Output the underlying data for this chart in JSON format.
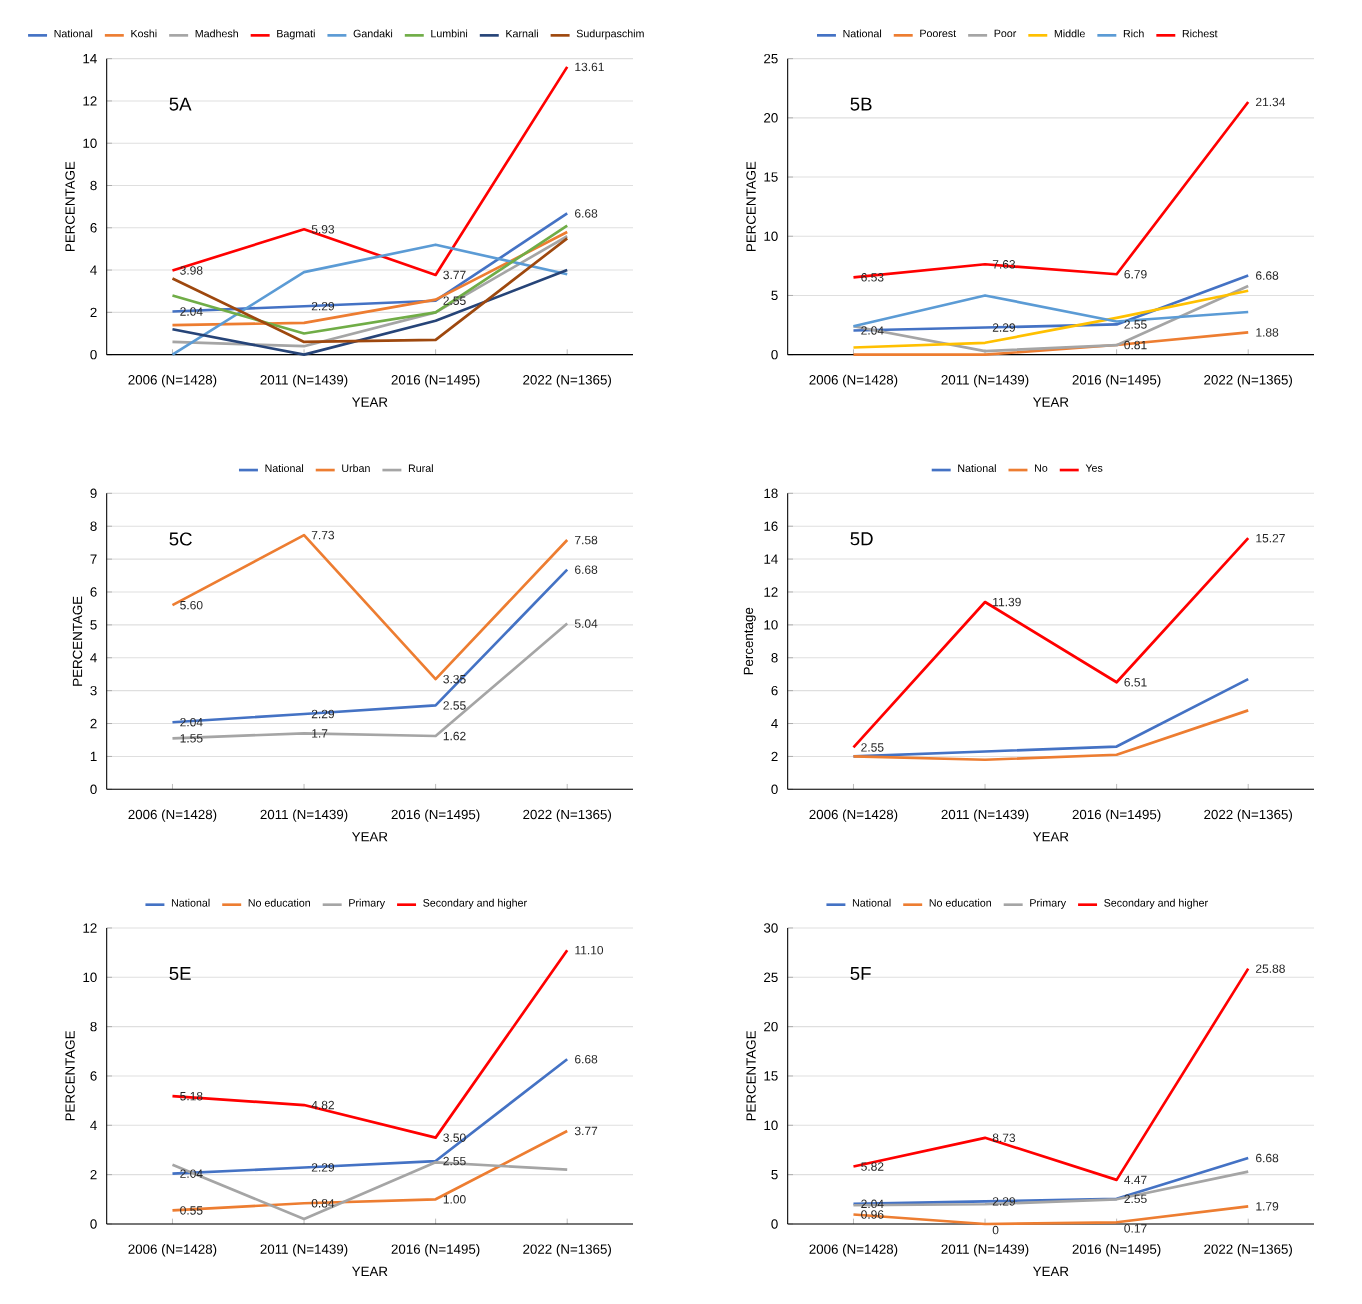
{
  "chart_data": [
    {
      "type": "line",
      "title": "5A",
      "xlabel": "YEAR",
      "ylabel": "PERCENTAGE",
      "categories": [
        "2006 (N=1428)",
        "2011 (N=1439)",
        "2016 (N=1495)",
        "2022 (N=1365)"
      ],
      "ylim": [
        0,
        14
      ],
      "yticks": [
        0,
        2,
        4,
        6,
        8,
        10,
        12,
        14
      ],
      "grid": "y",
      "legend": "top",
      "marker": "none",
      "line_style": "solid",
      "series": [
        {
          "name": "National",
          "color": "#4472c4",
          "values": [
            2.04,
            2.29,
            2.55,
            6.68
          ],
          "value_labels": [
            "2.04",
            "2.29",
            "2.55",
            "6.68"
          ]
        },
        {
          "name": "Koshi",
          "color": "#ed7d31",
          "values": [
            1.4,
            1.5,
            2.6,
            5.8
          ]
        },
        {
          "name": "Madhesh",
          "color": "#a5a5a5",
          "values": [
            0.6,
            0.4,
            2.0,
            5.6
          ]
        },
        {
          "name": "Bagmati",
          "color": "#ff0000",
          "values": [
            3.98,
            5.93,
            3.77,
            13.61
          ],
          "value_labels": [
            "3.98",
            "5.93",
            "3.77",
            "13.61"
          ]
        },
        {
          "name": "Gandaki",
          "color": "#5b9bd5",
          "values": [
            0,
            3.9,
            5.2,
            3.8
          ]
        },
        {
          "name": "Lumbini",
          "color": "#70ad47",
          "values": [
            2.8,
            1.0,
            2.0,
            6.1
          ]
        },
        {
          "name": "Karnali",
          "color": "#264478",
          "values": [
            1.2,
            0,
            1.6,
            4.0
          ]
        },
        {
          "name": "Sudurpaschim",
          "color": "#9e480e",
          "values": [
            3.6,
            0.6,
            0.7,
            5.5
          ]
        }
      ]
    },
    {
      "type": "line",
      "title": "5B",
      "xlabel": "YEAR",
      "ylabel": "PERCENTAGE",
      "categories": [
        "2006 (N=1428)",
        "2011 (N=1439)",
        "2016 (N=1495)",
        "2022 (N=1365)"
      ],
      "ylim": [
        0,
        25
      ],
      "yticks": [
        0,
        5,
        10,
        15,
        20,
        25
      ],
      "grid": "y",
      "legend": "top",
      "marker": "none",
      "line_style": "solid",
      "series": [
        {
          "name": "National",
          "color": "#4472c4",
          "values": [
            2.04,
            2.29,
            2.55,
            6.68
          ],
          "value_labels": [
            "2.04",
            "2.29",
            "2.55",
            "6.68"
          ]
        },
        {
          "name": "Poorest",
          "color": "#ed7d31",
          "values": [
            0,
            0,
            0.81,
            1.88
          ],
          "value_labels": [
            null,
            null,
            "0.81",
            "1.88"
          ]
        },
        {
          "name": "Poor",
          "color": "#a5a5a5",
          "values": [
            2.4,
            0.3,
            0.8,
            5.8
          ]
        },
        {
          "name": "Middle",
          "color": "#ffc000",
          "values": [
            0.6,
            1.0,
            3.1,
            5.4
          ]
        },
        {
          "name": "Rich",
          "color": "#5b9bd5",
          "values": [
            2.4,
            5.0,
            2.8,
            3.6
          ]
        },
        {
          "name": "Richest",
          "color": "#ff0000",
          "values": [
            6.53,
            7.63,
            6.79,
            21.34
          ],
          "value_labels": [
            "6.53",
            "7.63",
            "6.79",
            "21.34"
          ]
        }
      ]
    },
    {
      "type": "line",
      "title": "5C",
      "xlabel": "YEAR",
      "ylabel": "PERCENTAGE",
      "categories": [
        "2006 (N=1428)",
        "2011 (N=1439)",
        "2016 (N=1495)",
        "2022 (N=1365)"
      ],
      "ylim": [
        0,
        9
      ],
      "yticks": [
        0,
        1,
        2,
        3,
        4,
        5,
        6,
        7,
        8,
        9
      ],
      "grid": "y",
      "legend": "top",
      "marker": "none",
      "line_style": "solid",
      "series": [
        {
          "name": "National",
          "color": "#4472c4",
          "values": [
            2.04,
            2.29,
            2.55,
            6.68
          ],
          "value_labels": [
            "2.04",
            "2.29",
            "2.55",
            "6.68"
          ]
        },
        {
          "name": "Urban",
          "color": "#ed7d31",
          "values": [
            5.6,
            7.73,
            3.35,
            7.58
          ],
          "value_labels": [
            "5.60",
            "7.73",
            "3.35",
            "7.58"
          ]
        },
        {
          "name": "Rural",
          "color": "#a5a5a5",
          "values": [
            1.55,
            1.7,
            1.62,
            5.04
          ],
          "value_labels": [
            "1.55",
            "1.7",
            "1.62",
            "5.04"
          ]
        }
      ]
    },
    {
      "type": "line",
      "title": "5D",
      "xlabel": "YEAR",
      "ylabel": "Percentage",
      "categories": [
        "2006 (N=1428)",
        "2011 (N=1439)",
        "2016 (N=1495)",
        "2022 (N=1365)"
      ],
      "ylim": [
        0,
        18
      ],
      "yticks": [
        0,
        2,
        4,
        6,
        8,
        10,
        12,
        14,
        16,
        18
      ],
      "grid": "y",
      "legend": "top",
      "marker": "none",
      "line_style": "solid",
      "series": [
        {
          "name": "National",
          "color": "#4472c4",
          "values": [
            2.0,
            2.3,
            2.6,
            6.7
          ]
        },
        {
          "name": "No",
          "color": "#ed7d31",
          "values": [
            2.0,
            1.8,
            2.1,
            4.8
          ]
        },
        {
          "name": "Yes",
          "color": "#ff0000",
          "values": [
            2.55,
            11.39,
            6.51,
            15.27
          ],
          "value_labels": [
            "2.55",
            "11.39",
            "6.51",
            "15.27"
          ]
        }
      ]
    },
    {
      "type": "line",
      "title": "5E",
      "xlabel": "YEAR",
      "ylabel": "PERCENTAGE",
      "categories": [
        "2006 (N=1428)",
        "2011 (N=1439)",
        "2016 (N=1495)",
        "2022 (N=1365)"
      ],
      "ylim": [
        0,
        12
      ],
      "yticks": [
        0,
        2,
        4,
        6,
        8,
        10,
        12
      ],
      "grid": "y",
      "legend": "top",
      "marker": "none",
      "line_style": "solid",
      "series": [
        {
          "name": "National",
          "color": "#4472c4",
          "values": [
            2.04,
            2.29,
            2.55,
            6.68
          ],
          "value_labels": [
            "2.04",
            "2.29",
            "2.55",
            "6.68"
          ]
        },
        {
          "name": "No education",
          "color": "#ed7d31",
          "values": [
            0.55,
            0.84,
            1.0,
            3.77
          ],
          "value_labels": [
            "0.55",
            "0.84",
            "1.00",
            "3.77"
          ]
        },
        {
          "name": "Primary",
          "color": "#a5a5a5",
          "values": [
            2.4,
            0.2,
            2.5,
            2.2
          ]
        },
        {
          "name": "Secondary and higher",
          "color": "#ff0000",
          "values": [
            5.18,
            4.82,
            3.5,
            11.1
          ],
          "value_labels": [
            "5.18",
            "4.82",
            "3.50",
            "11.10"
          ]
        }
      ]
    },
    {
      "type": "line",
      "title": "5F",
      "xlabel": "YEAR",
      "ylabel": "PERCENTAGE",
      "categories": [
        "2006 (N=1428)",
        "2011 (N=1439)",
        "2016 (N=1495)",
        "2022 (N=1365)"
      ],
      "ylim": [
        0,
        30
      ],
      "yticks": [
        0,
        5,
        10,
        15,
        20,
        25,
        30
      ],
      "grid": "y",
      "legend": "top",
      "marker": "none",
      "line_style": "solid",
      "series": [
        {
          "name": "National",
          "color": "#4472c4",
          "values": [
            2.04,
            2.29,
            2.55,
            6.68
          ],
          "value_labels": [
            "2.04",
            "2.29",
            "2.55",
            "6.68"
          ]
        },
        {
          "name": "No education",
          "color": "#ed7d31",
          "values": [
            0.96,
            0,
            0.17,
            1.79
          ],
          "value_labels": [
            "0.96",
            "0",
            "0.17",
            "1.79"
          ]
        },
        {
          "name": "Primary",
          "color": "#a5a5a5",
          "values": [
            1.9,
            2.0,
            2.5,
            5.3
          ]
        },
        {
          "name": "Secondary and higher",
          "color": "#ff0000",
          "values": [
            5.82,
            8.73,
            4.47,
            25.88
          ],
          "value_labels": [
            "5.82",
            "8.73",
            "4.47",
            "25.88"
          ]
        }
      ]
    }
  ]
}
